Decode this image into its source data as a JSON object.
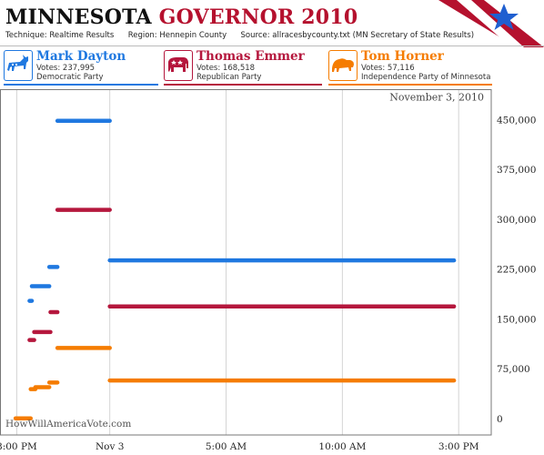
{
  "header": {
    "title_part1": "MINNESOTA",
    "title_part2": "GOVERNOR 2010",
    "technique_label": "Technique:",
    "technique": "Realtime Results",
    "region_label": "Region:",
    "region": "Hennepin County",
    "source_label": "Source:",
    "source": "allracesbycounty.txt (MN Secretary  of State Results)"
  },
  "candidates": [
    {
      "name": "Mark Dayton",
      "votes": "Votes: 237,995",
      "party": "Democratic Party",
      "color": "#1f78e0",
      "icon": "donkey-icon"
    },
    {
      "name": "Thomas Emmer",
      "votes": "Votes: 168,518",
      "party": "Republican Party",
      "color": "#b5173d",
      "icon": "elephant-icon"
    },
    {
      "name": "Tom Horner",
      "votes": "Votes: 57,116",
      "party": "Independence Party  of Minnesota",
      "color": "#f57c00",
      "icon": "bison-icon"
    }
  ],
  "watermark": "HowWillAmericaVote.com",
  "colors": {
    "dayton": "#1f78e0",
    "emmer": "#b5173d",
    "horner": "#f57c00",
    "brand_red": "#b5112e"
  },
  "chart_data": {
    "type": "line",
    "date_label": "November 3, 2010",
    "x_tick_labels": [
      "8:00 PM",
      "Nov 3",
      "5:00 AM",
      "10:00 AM",
      "3:00 PM"
    ],
    "x_ticks_hours": [
      20,
      24,
      29,
      34,
      39
    ],
    "y_ticks": [
      0,
      75000,
      150000,
      225000,
      300000,
      375000,
      450000
    ],
    "y_tick_labels": [
      "0",
      "75,000",
      "150,000",
      "225,000",
      "300,000",
      "375,000",
      "450,000"
    ],
    "xlim": [
      19.3,
      40.4
    ],
    "ylim": [
      -25000,
      495000
    ],
    "grid": true,
    "series": [
      {
        "name": "Mark Dayton",
        "color": "#1f78e0",
        "segments": [
          {
            "x": [
              20.55,
              20.65
            ],
            "y": [
              177000,
              177000
            ]
          },
          {
            "x": [
              20.65,
              21.4
            ],
            "y": [
              199000,
              199000
            ]
          },
          {
            "x": [
              21.4,
              21.75
            ],
            "y": [
              228000,
              228000
            ]
          },
          {
            "x": [
              21.75,
              24.0
            ],
            "y": [
              448000,
              448000
            ]
          },
          {
            "x": [
              24.0,
              38.8
            ],
            "y": [
              237995,
              237995
            ]
          }
        ]
      },
      {
        "name": "Thomas Emmer",
        "color": "#b5173d",
        "segments": [
          {
            "x": [
              20.55,
              20.75
            ],
            "y": [
              118000,
              118000
            ]
          },
          {
            "x": [
              20.75,
              21.45
            ],
            "y": [
              130000,
              130000
            ]
          },
          {
            "x": [
              21.45,
              21.75
            ],
            "y": [
              160000,
              160000
            ]
          },
          {
            "x": [
              21.75,
              24.0
            ],
            "y": [
              314000,
              314000
            ]
          },
          {
            "x": [
              24.0,
              38.8
            ],
            "y": [
              168518,
              168518
            ]
          }
        ]
      },
      {
        "name": "Tom Horner",
        "color": "#f57c00",
        "segments": [
          {
            "x": [
              19.95,
              20.6
            ],
            "y": [
              0,
              0
            ]
          },
          {
            "x": [
              20.6,
              20.8
            ],
            "y": [
              44000,
              44000
            ]
          },
          {
            "x": [
              20.8,
              21.4
            ],
            "y": [
              47000,
              47000
            ]
          },
          {
            "x": [
              21.4,
              21.75
            ],
            "y": [
              54000,
              54000
            ]
          },
          {
            "x": [
              21.75,
              24.0
            ],
            "y": [
              106000,
              106000
            ]
          },
          {
            "x": [
              24.0,
              38.8
            ],
            "y": [
              57116,
              57116
            ]
          }
        ]
      }
    ]
  }
}
